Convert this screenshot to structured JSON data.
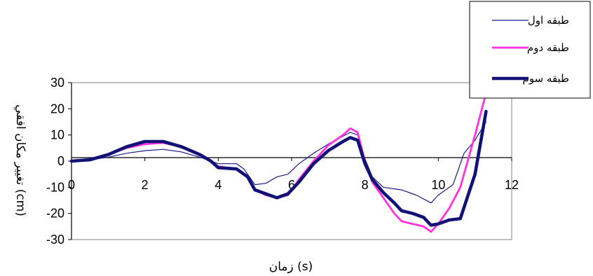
{
  "chart_data": {
    "type": "line",
    "xlabel": "زمان (s)",
    "ylabel": "تغيير مكان افقي (cm)",
    "xlim": [
      0,
      12
    ],
    "ylim": [
      -30,
      30
    ],
    "x_ticks": [
      "0",
      "2",
      "4",
      "6",
      "8",
      "10",
      "12"
    ],
    "y_ticks": [
      "30",
      "20",
      "10",
      "0",
      "-10",
      "-20",
      "-30"
    ],
    "grid": false,
    "legend_position": "top-right",
    "series": [
      {
        "name": "طبقه اول",
        "color": "#1a1a8c",
        "x": [
          0,
          0.5,
          1.0,
          1.5,
          2.0,
          2.5,
          3.0,
          3.5,
          3.8,
          4.0,
          4.5,
          4.7,
          5.0,
          5.3,
          5.6,
          5.9,
          6.2,
          6.6,
          7.0,
          7.4,
          7.6,
          7.8,
          8.0,
          8.2,
          8.5,
          9.0,
          9.4,
          9.8,
          10.0,
          10.4,
          10.7,
          11.0,
          11.3
        ],
        "y": [
          0,
          0.5,
          1.5,
          3.0,
          4.0,
          4.5,
          3.5,
          1.5,
          0,
          -1.0,
          -1.0,
          -3.0,
          -9.0,
          -8.5,
          -6.0,
          -5.0,
          -1.0,
          3.0,
          6.5,
          9.5,
          11.0,
          10.0,
          1.0,
          -6.0,
          -10.0,
          -11.0,
          -13.0,
          -16.0,
          -13.0,
          -9.0,
          3.0,
          8.0,
          15.0
        ]
      },
      {
        "name": "طبقه دوم",
        "color": "#ff33dd",
        "x": [
          0,
          0.5,
          1.0,
          1.5,
          2.0,
          2.5,
          3.0,
          3.5,
          3.8,
          4.0,
          4.5,
          4.8,
          5.0,
          5.3,
          5.6,
          5.9,
          6.2,
          6.6,
          7.0,
          7.4,
          7.6,
          7.8,
          8.0,
          8.2,
          8.5,
          8.8,
          9.0,
          9.3,
          9.6,
          9.8,
          10.0,
          10.3,
          10.6,
          11.0,
          11.3
        ],
        "y": [
          0,
          0.5,
          2.5,
          5.0,
          6.5,
          7.0,
          5.5,
          2.5,
          0,
          -2.0,
          -3.0,
          -6.0,
          -11.0,
          -13.0,
          -14.0,
          -13.0,
          -7.0,
          0,
          6.0,
          10.0,
          12.5,
          11.0,
          0,
          -8.0,
          -14.0,
          -20.0,
          -23.0,
          -24.0,
          -25.0,
          -27.0,
          -24.0,
          -18.0,
          -10.0,
          10.0,
          26.0
        ]
      },
      {
        "name": "طبقه سوم",
        "color": "#111177",
        "x": [
          0,
          0.5,
          1.0,
          1.5,
          2.0,
          2.5,
          3.0,
          3.5,
          3.8,
          4.0,
          4.5,
          4.8,
          5.0,
          5.3,
          5.6,
          5.9,
          6.2,
          6.6,
          7.0,
          7.4,
          7.6,
          7.8,
          8.0,
          8.2,
          8.5,
          8.8,
          9.0,
          9.3,
          9.6,
          9.8,
          10.0,
          10.3,
          10.6,
          11.0,
          11.3
        ],
        "y": [
          0,
          0.5,
          2.5,
          5.5,
          7.5,
          7.5,
          5.5,
          2.5,
          0,
          -2.5,
          -3.0,
          -6.0,
          -11.0,
          -12.5,
          -14.0,
          -12.5,
          -8.0,
          -1.0,
          4.0,
          7.5,
          9.0,
          8.0,
          -1.0,
          -7.0,
          -12.0,
          -16.0,
          -19.0,
          -20.0,
          -21.5,
          -24.5,
          -24.0,
          -22.5,
          -22.0,
          -5.0,
          19.0
        ]
      }
    ]
  }
}
